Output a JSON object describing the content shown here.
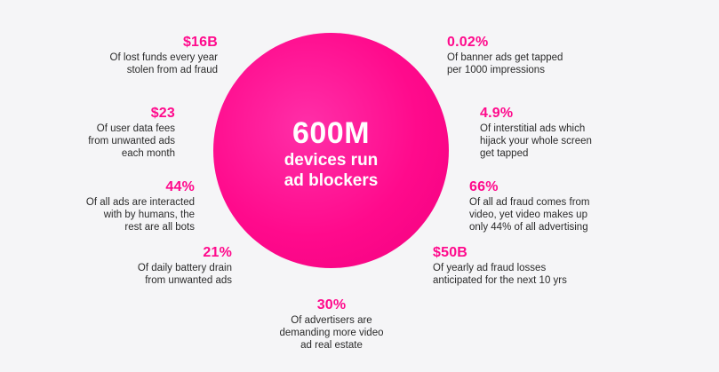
{
  "center": {
    "number": "600M",
    "line1": "devices run",
    "line2": "ad blockers"
  },
  "colors": {
    "accent": "#ff0a8c",
    "background": "#f5f5f7",
    "text": "#2b2b2b"
  },
  "stats": {
    "left": [
      {
        "value": "$16B",
        "desc": "Of lost funds every year\nstolen from ad fraud"
      },
      {
        "value": "$23",
        "desc": "Of user data fees\nfrom unwanted ads\neach month"
      },
      {
        "value": "44%",
        "desc": "Of all ads are interacted\nwith by humans, the\nrest are all bots"
      },
      {
        "value": "21%",
        "desc": "Of daily battery drain\nfrom unwanted ads"
      }
    ],
    "right": [
      {
        "value": "0.02%",
        "desc": "Of banner ads get tapped\nper 1000 impressions"
      },
      {
        "value": "4.9%",
        "desc": "Of interstitial ads which\nhijack your whole screen\nget tapped"
      },
      {
        "value": "66%",
        "desc": "Of all ad fraud comes from\nvideo, yet video makes up\nonly 44% of all advertising"
      },
      {
        "value": "$50B",
        "desc": "Of yearly ad fraud losses\nanticipated for the next 10 yrs"
      }
    ],
    "bottom": {
      "value": "30%",
      "desc": "Of advertisers are\ndemanding more video\nad real estate"
    }
  }
}
